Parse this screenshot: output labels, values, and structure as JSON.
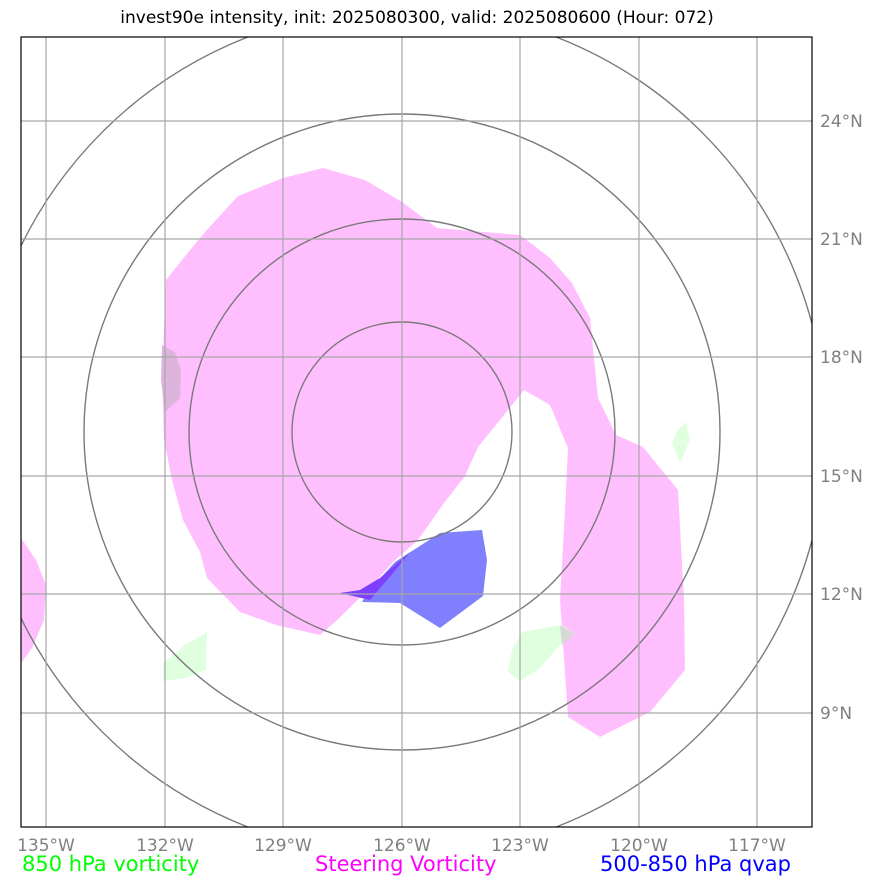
{
  "title": "invest90e intensity, init: 2025080300, valid: 2025080600 (Hour: 072)",
  "longitude_labels": [
    "135°W",
    "132°W",
    "129°W",
    "126°W",
    "123°W",
    "120°W",
    "117°W"
  ],
  "latitude_labels": [
    "24°N",
    "21°N",
    "18°N",
    "15°N",
    "12°N",
    "9°N"
  ],
  "legend": [
    {
      "label": "850 hPa vorticity",
      "color": "#00ff00"
    },
    {
      "label": "Steering Vorticity",
      "color": "#ff00ff"
    },
    {
      "label": "500-850 hPa qvap",
      "color": "#0000ff"
    }
  ],
  "colors": {
    "steering_fill": "#ffbfff",
    "vorticity_fill": "#dfffdf",
    "qvap_fill": "#8080ff",
    "qvap_overlap": "#7f3fff",
    "rings": "#7a7a7a",
    "gridlines": "#a6a6a6"
  }
}
